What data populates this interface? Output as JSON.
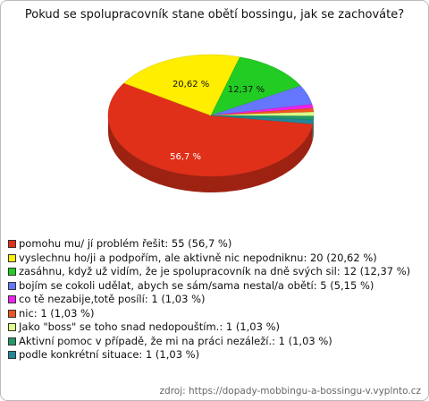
{
  "chart_data": {
    "type": "pie3d",
    "title": "Pokud se spolupracovník stane obětí bossingu, jak se zachováte?",
    "categories": [
      "pomohu mu/ jí problém řešit: 55 (56,7 %)",
      "vyslechnu ho/ji a podpořím, ale aktivně nic nepodniknu: 20 (20,62 %)",
      "zasáhnu, když už vidím, že je spolupracovník na dně svých sil: 12 (12,37 %)",
      "bojím se cokoli udělat, abych se sám/sama nestal/a obětí: 5 (5,15 %)",
      "co tě nezabije,totě posílí: 1 (1,03 %)",
      "nic: 1 (1,03 %)",
      "Jako \"boss\" se toho snad nedopouštím.: 1 (1,03 %)",
      "Aktivní pomoc v případě, že mi na práci nezáleží.: 1 (1,03 %)",
      "podle konkrétní situace: 1 (1,03 %)"
    ],
    "values": [
      56.7,
      20.62,
      12.37,
      5.15,
      1.03,
      1.03,
      1.03,
      1.03,
      1.03
    ],
    "value_labels": [
      "56,7 %",
      "20,62 %",
      "12,37 %",
      null,
      null,
      null,
      null,
      null,
      null
    ],
    "colors": [
      "#e0301a",
      "#ffee00",
      "#22cc22",
      "#6677ff",
      "#ee22ee",
      "#ee5522",
      "#ddff88",
      "#229966",
      "#228899"
    ],
    "source": "zdroj: https://dopady-mobbingu-a-bossingu-v.vyplnto.cz"
  }
}
